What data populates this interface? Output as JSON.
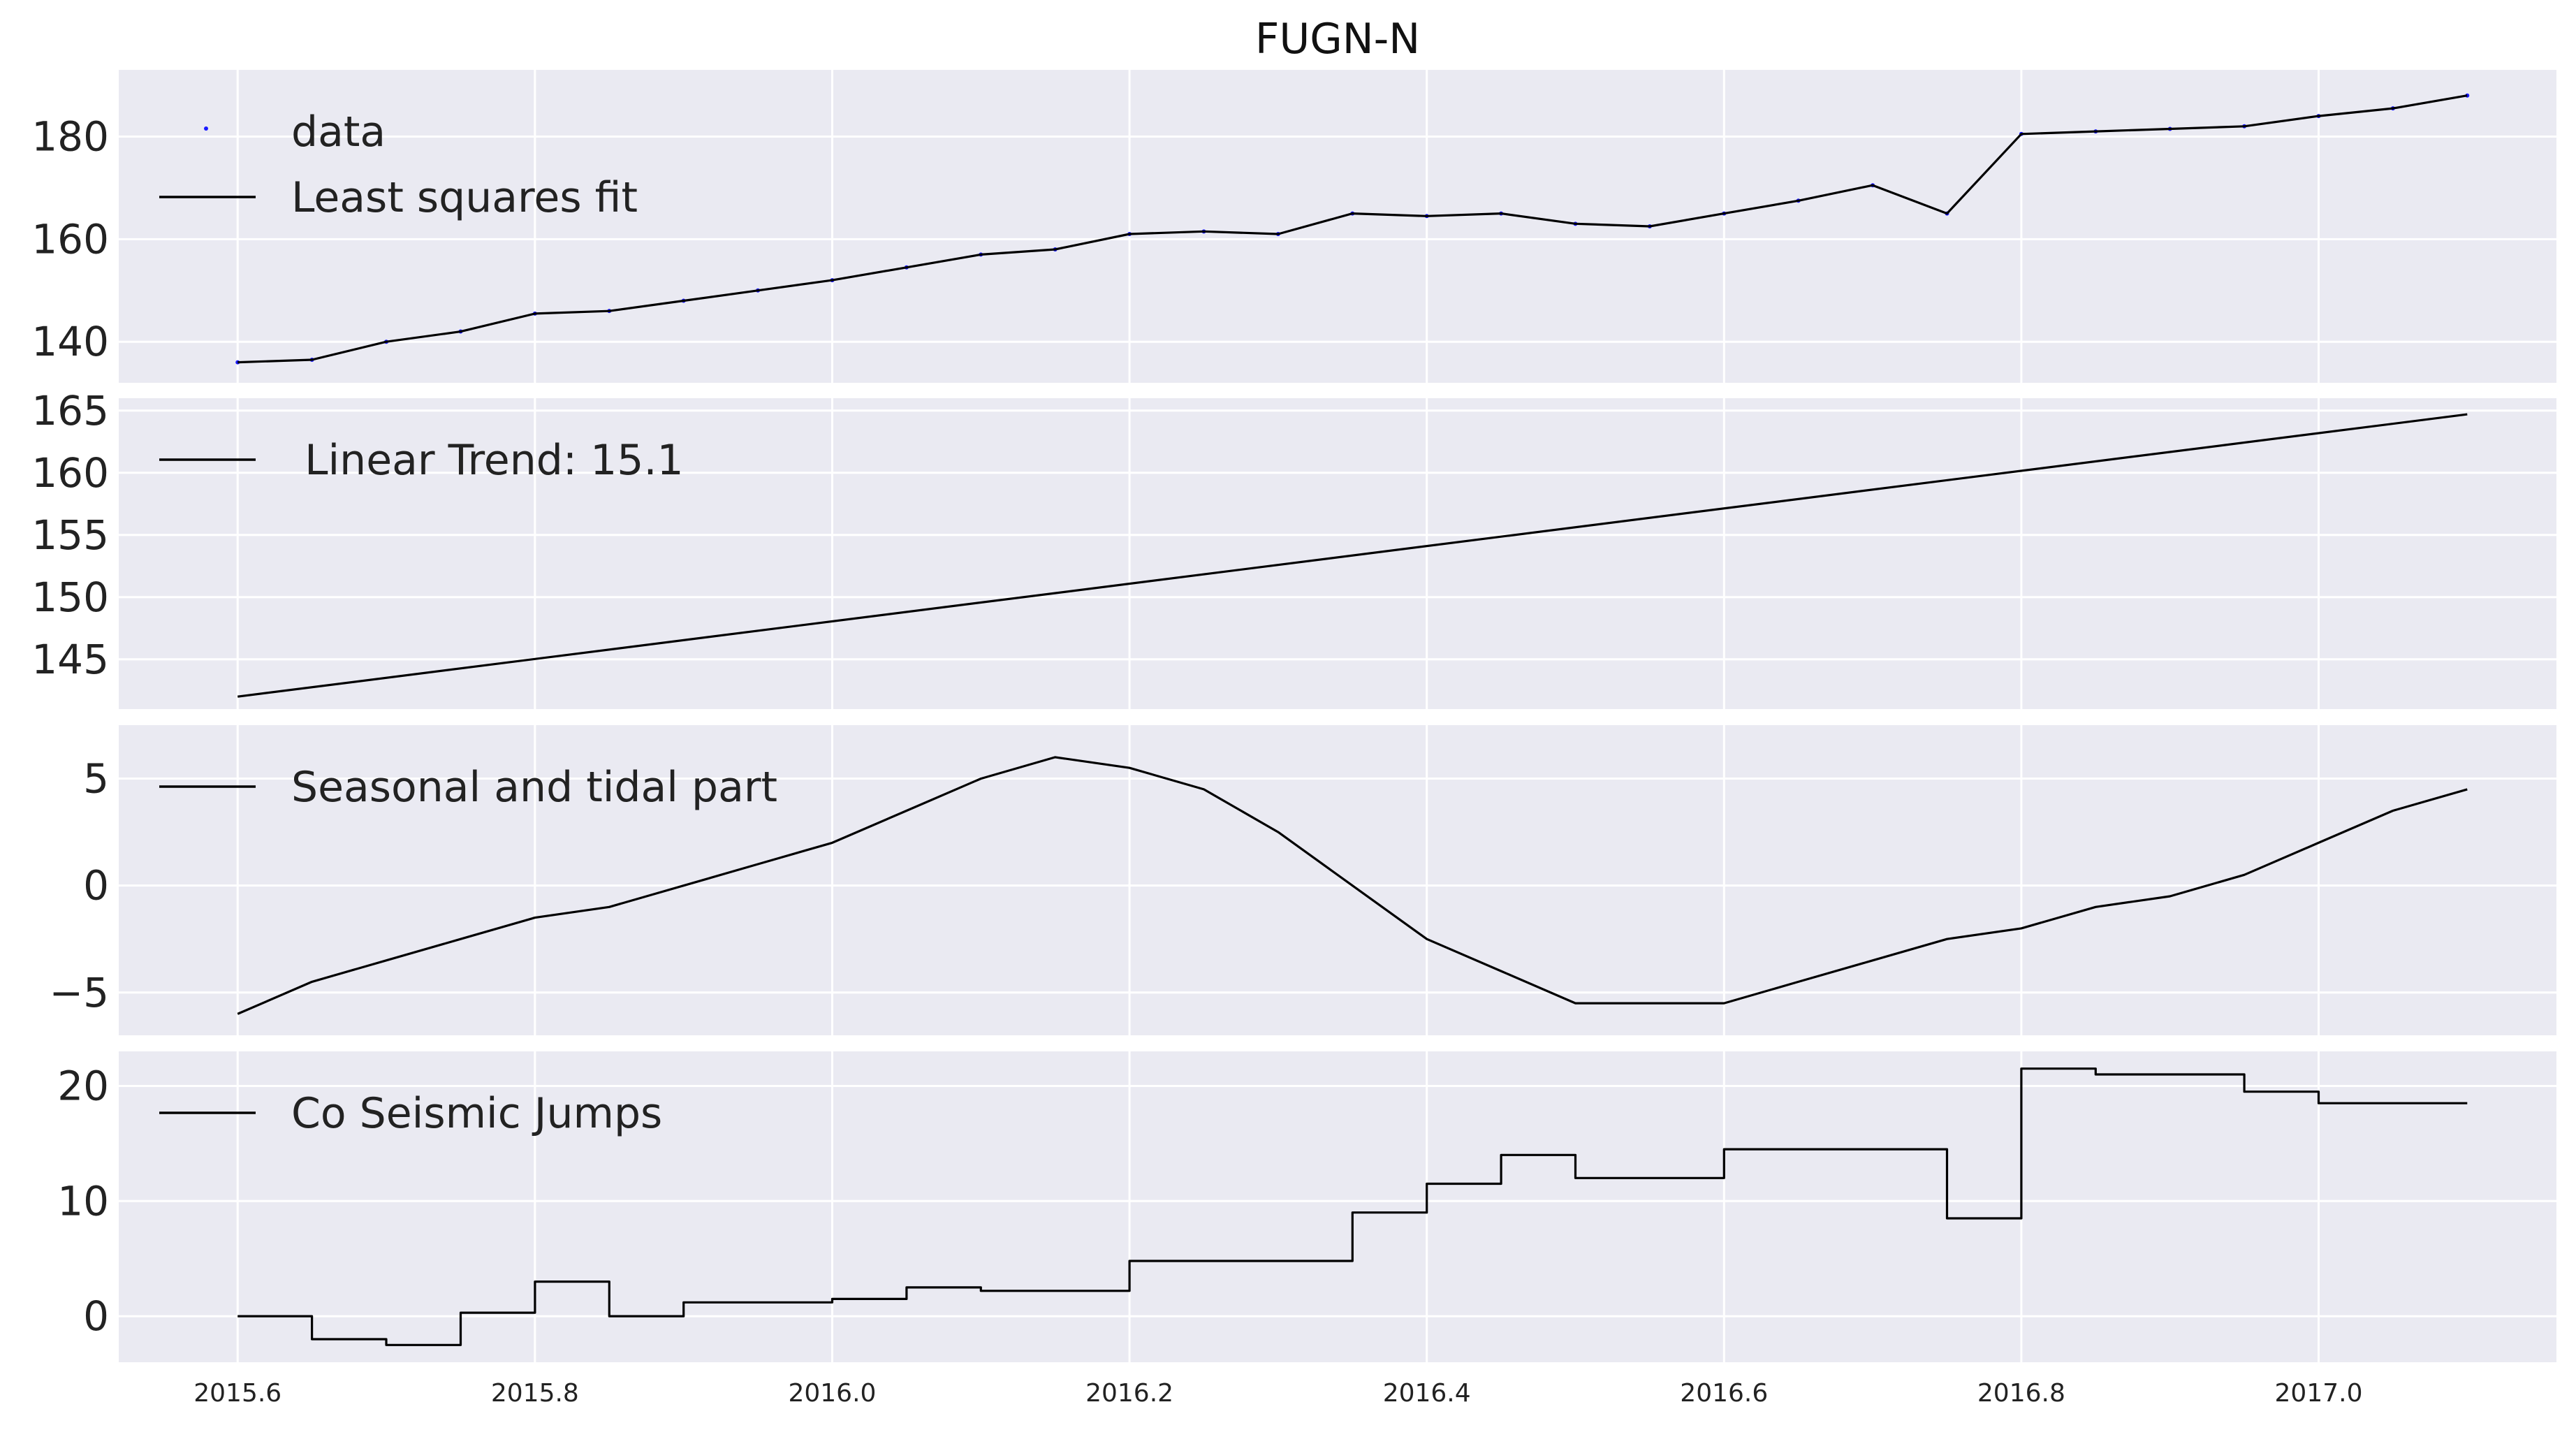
{
  "title": "FUGN-N",
  "xticks": [
    "2015.6",
    "2015.8",
    "2016.0",
    "2016.2",
    "2016.4",
    "2016.6",
    "2016.8",
    "2017.0"
  ],
  "colors": {
    "panel_background": "#eaeaf2",
    "grid": "#ffffff",
    "line": "#000000",
    "data_points": "#1a1aff"
  },
  "chart_data": [
    {
      "type": "line",
      "title": "FUGN-N",
      "xlim": [
        2015.52,
        2017.16
      ],
      "ylim": [
        132,
        193
      ],
      "yticks": [
        "140",
        "160",
        "180"
      ],
      "grid": true,
      "legend_position": "upper-left",
      "series": [
        {
          "name": "data",
          "style": "points",
          "x": [
            2015.6,
            2015.65,
            2015.7,
            2015.75,
            2015.8,
            2015.85,
            2015.9,
            2015.95,
            2016.0,
            2016.05,
            2016.1,
            2016.15,
            2016.2,
            2016.25,
            2016.3,
            2016.35,
            2016.4,
            2016.45,
            2016.5,
            2016.55,
            2016.6,
            2016.65,
            2016.7,
            2016.75,
            2016.8,
            2016.85,
            2016.9,
            2016.95,
            2017.0,
            2017.05,
            2017.1
          ],
          "y": [
            136,
            136.5,
            140,
            142,
            145.5,
            146,
            148,
            150,
            152,
            154.5,
            157,
            158,
            161,
            161.5,
            161,
            165,
            164.5,
            165,
            163,
            162.5,
            165,
            167.5,
            170.5,
            165,
            180.5,
            181,
            181.5,
            182,
            184,
            185.5,
            188
          ]
        },
        {
          "name": "Least squares fit",
          "style": "line",
          "x": [
            2015.6,
            2015.65,
            2015.7,
            2015.75,
            2015.8,
            2015.85,
            2015.9,
            2015.95,
            2016.0,
            2016.05,
            2016.1,
            2016.15,
            2016.2,
            2016.25,
            2016.3,
            2016.35,
            2016.4,
            2016.45,
            2016.5,
            2016.55,
            2016.6,
            2016.65,
            2016.7,
            2016.75,
            2016.8,
            2016.85,
            2016.9,
            2016.95,
            2017.0,
            2017.05,
            2017.1
          ],
          "y": [
            136,
            136.5,
            140,
            142,
            145.5,
            146,
            148,
            150,
            152,
            154.5,
            157,
            158,
            161,
            161.5,
            161,
            165,
            164.5,
            165,
            163,
            162.5,
            165,
            167.5,
            170.5,
            165,
            180.5,
            181,
            181.5,
            182,
            184,
            185.5,
            188
          ]
        }
      ]
    },
    {
      "type": "line",
      "xlim": [
        2015.52,
        2017.16
      ],
      "ylim": [
        141,
        166
      ],
      "yticks": [
        "145",
        "150",
        "155",
        "160",
        "165"
      ],
      "grid": true,
      "legend_position": "upper-left",
      "series": [
        {
          "name": " Linear Trend: 15.1",
          "x": [
            2015.6,
            2017.1
          ],
          "y": [
            142,
            164.7
          ]
        }
      ]
    },
    {
      "type": "line",
      "xlim": [
        2015.52,
        2017.16
      ],
      "ylim": [
        -7,
        7.5
      ],
      "yticks": [
        "−5",
        "0",
        "5"
      ],
      "grid": true,
      "legend_position": "upper-left",
      "series": [
        {
          "name": "Seasonal and tidal part",
          "x": [
            2015.6,
            2015.65,
            2015.7,
            2015.75,
            2015.8,
            2015.85,
            2015.9,
            2015.95,
            2016.0,
            2016.05,
            2016.1,
            2016.15,
            2016.2,
            2016.25,
            2016.3,
            2016.35,
            2016.4,
            2016.45,
            2016.5,
            2016.55,
            2016.6,
            2016.65,
            2016.7,
            2016.75,
            2016.8,
            2016.85,
            2016.9,
            2016.95,
            2017.0,
            2017.05,
            2017.1
          ],
          "y": [
            -6,
            -4.5,
            -3.5,
            -2.5,
            -1.5,
            -1,
            0,
            1,
            2,
            3.5,
            5,
            6,
            5.5,
            4.5,
            2.5,
            0,
            -2.5,
            -4,
            -5.5,
            -5.5,
            -5.5,
            -4.5,
            -3.5,
            -2.5,
            -2,
            -1,
            -0.5,
            0.5,
            2,
            3.5,
            4.5
          ]
        }
      ]
    },
    {
      "type": "line",
      "xlim": [
        2015.52,
        2017.16
      ],
      "ylim": [
        -4,
        23
      ],
      "yticks": [
        "0",
        "10",
        "20"
      ],
      "grid": true,
      "legend_position": "upper-left",
      "series": [
        {
          "name": "Co Seismic Jumps",
          "style": "step",
          "x": [
            2015.6,
            2015.65,
            2015.7,
            2015.75,
            2015.8,
            2015.85,
            2015.9,
            2015.95,
            2016.0,
            2016.05,
            2016.1,
            2016.15,
            2016.2,
            2016.25,
            2016.3,
            2016.35,
            2016.4,
            2016.45,
            2016.5,
            2016.55,
            2016.6,
            2016.65,
            2016.7,
            2016.75,
            2016.8,
            2016.85,
            2016.9,
            2016.95,
            2017.0,
            2017.05,
            2017.1
          ],
          "y": [
            0,
            -2,
            -2.5,
            0.3,
            3,
            0,
            1.2,
            1.2,
            1.5,
            2.5,
            2.2,
            2.2,
            4.8,
            4.8,
            4.8,
            9,
            11.5,
            14,
            12,
            12,
            14.5,
            14.5,
            14.5,
            8.5,
            21.5,
            21,
            21,
            19.5,
            18.5,
            18.5,
            18.5
          ]
        }
      ]
    }
  ]
}
